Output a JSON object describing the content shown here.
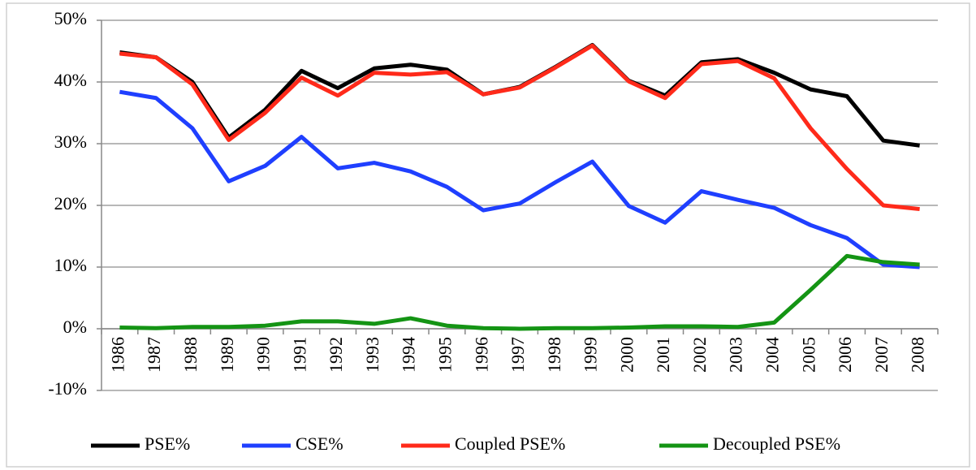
{
  "chart_data": {
    "type": "line",
    "categories": [
      "1986",
      "1987",
      "1988",
      "1989",
      "1990",
      "1991",
      "1992",
      "1993",
      "1994",
      "1995",
      "1996",
      "1997",
      "1998",
      "1999",
      "2000",
      "2001",
      "2002",
      "2003",
      "2004",
      "2005",
      "2006",
      "2007",
      "2008"
    ],
    "series": [
      {
        "name": "PSE%",
        "color": "#000000",
        "values": [
          44.8,
          44,
          40,
          31,
          35.5,
          41.8,
          39,
          42.2,
          42.8,
          42,
          38,
          39.2,
          42.5,
          46,
          40.2,
          37.8,
          43.2,
          43.7,
          41.5,
          38.8,
          37.7,
          30.5,
          29.7
        ]
      },
      {
        "name": "CSE%",
        "color": "#1f3fff",
        "values": [
          38.4,
          37.4,
          32.5,
          23.9,
          26.4,
          31.1,
          26,
          26.9,
          25.5,
          23,
          19.2,
          20.3,
          23.8,
          27.1,
          19.9,
          17.2,
          22.3,
          20.9,
          19.6,
          16.8,
          14.7,
          10.4,
          10
        ]
      },
      {
        "name": "Coupled PSE%",
        "color": "#ff2a1a",
        "values": [
          44.6,
          44,
          39.6,
          30.6,
          35,
          40.7,
          37.8,
          41.5,
          41.2,
          41.6,
          38,
          39.1,
          42.4,
          45.9,
          40.1,
          37.4,
          42.9,
          43.4,
          40.6,
          32.5,
          25.9,
          20,
          19.4
        ]
      },
      {
        "name": "Decoupled PSE%",
        "color": "#149414",
        "values": [
          0.2,
          0.1,
          0.3,
          0.3,
          0.5,
          1.2,
          1.2,
          0.8,
          1.7,
          0.5,
          0.1,
          0,
          0.1,
          0.1,
          0.2,
          0.4,
          0.4,
          0.3,
          1.0,
          6.3,
          11.8,
          10.8,
          10.4
        ]
      }
    ],
    "ylim": [
      -10,
      50
    ],
    "yticks": [
      {
        "value": -10,
        "label": "-10%"
      },
      {
        "value": 0,
        "label": "0%"
      },
      {
        "value": 10,
        "label": "10%"
      },
      {
        "value": 20,
        "label": "20%"
      },
      {
        "value": 30,
        "label": "30%"
      },
      {
        "value": 40,
        "label": "40%"
      },
      {
        "value": 50,
        "label": "50%"
      }
    ],
    "grid": true,
    "legend": "bottom"
  }
}
